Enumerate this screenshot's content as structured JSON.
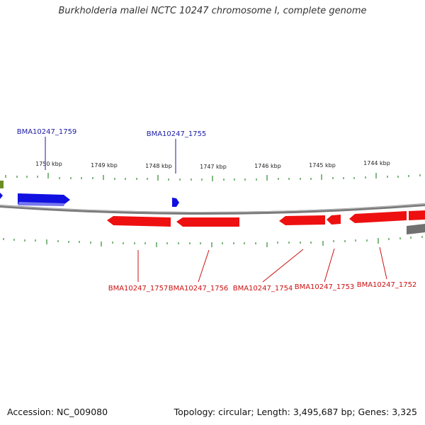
{
  "title": "Burkholderia mallei NCTC 10247 chromosome I, complete genome",
  "colors": {
    "forward_gene": "#1010e0",
    "reverse_gene": "#ee1010",
    "other_feature": "#777777",
    "olive_feature": "#6b8e23",
    "tick": "#2e8b2e",
    "backbone": "#7a7a7a",
    "forward_label": "#1a1aa8",
    "reverse_label": "#cc1111"
  },
  "scale": {
    "unit": "kbp",
    "ticks": [
      {
        "label": "1750 kbp"
      },
      {
        "label": "1749 kbp"
      },
      {
        "label": "1748 kbp"
      },
      {
        "label": "1747 kbp"
      },
      {
        "label": "1746 kbp"
      },
      {
        "label": "1745 kbp"
      },
      {
        "label": "1744 kbp"
      }
    ]
  },
  "forward_labels": [
    {
      "text": "BMA10247_1759"
    },
    {
      "text": "BMA10247_1755"
    }
  ],
  "reverse_labels": [
    {
      "text": "BMA10247_1757"
    },
    {
      "text": "BMA10247_1756"
    },
    {
      "text": "BMA10247_1754"
    },
    {
      "text": "BMA10247_1753"
    },
    {
      "text": "BMA10247_1752"
    }
  ],
  "footer": {
    "accession": "Accession: NC_009080",
    "summary": "Topology: circular; Length: 3,495,687 bp; Genes: 3,325"
  }
}
